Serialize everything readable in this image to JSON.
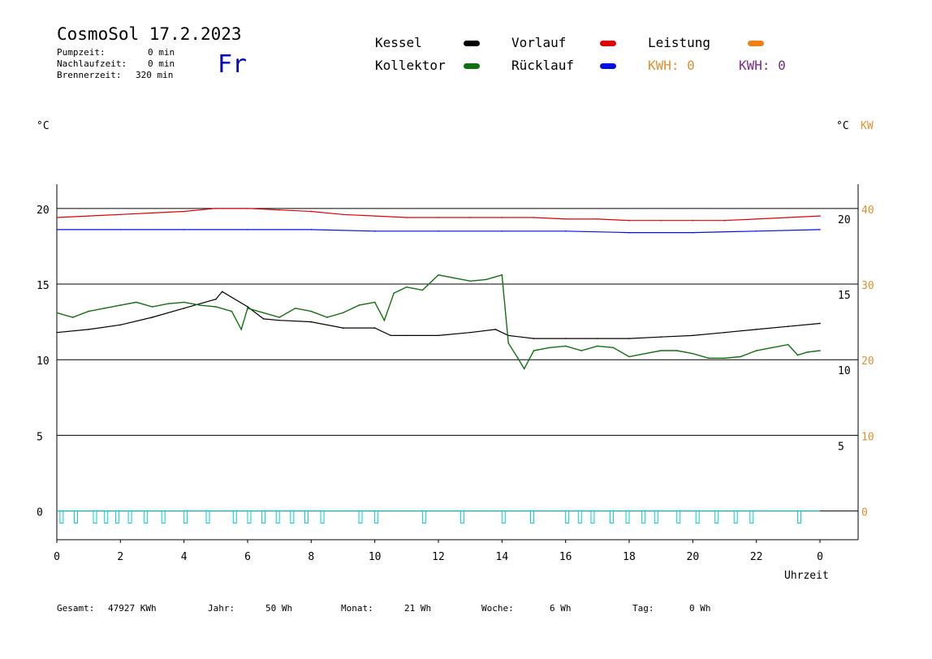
{
  "header": {
    "title": "CosmoSol 17.2.2023",
    "day": "Fr",
    "stats": [
      {
        "label": "Pumpzeit:",
        "value": "0 min"
      },
      {
        "label": "Nachlaufzeit:",
        "value": "0 min"
      },
      {
        "label": "Brennerzeit:",
        "value": "320 min"
      }
    ]
  },
  "legend": {
    "kessel": {
      "label": "Kessel",
      "color": "#000000"
    },
    "vorlauf": {
      "label": "Vorlauf",
      "color": "#e00000"
    },
    "leistung": {
      "label": "Leistung",
      "color": "#f08010"
    },
    "kollektor": {
      "label": "Kollektor",
      "color": "#107010"
    },
    "ruecklauf": {
      "label": "Rücklauf",
      "color": "#0010e0"
    },
    "kwh1": {
      "label": "KWH: 0",
      "color": "#e09030"
    },
    "kwh2": {
      "label": "KWH: 0",
      "color": "#7a2a8a"
    }
  },
  "axes": {
    "left_unit": "°C",
    "right_unit": "°C",
    "right_unit2": "KW",
    "x_label": "Uhrzeit"
  },
  "footer": [
    {
      "label": "Gesamt:",
      "value": "47927 KWh"
    },
    {
      "label": "Jahr:",
      "value": "50 Wh"
    },
    {
      "label": "Monat:",
      "value": "21 Wh"
    },
    {
      "label": "Woche:",
      "value": "6 Wh"
    },
    {
      "label": "Tag:",
      "value": "0 Wh"
    }
  ],
  "chart_data": {
    "type": "line",
    "x_ticks": [
      "0",
      "2",
      "4",
      "6",
      "8",
      "10",
      "12",
      "14",
      "16",
      "18",
      "20",
      "22",
      "0"
    ],
    "x_range": [
      0,
      24
    ],
    "left_axis": {
      "ticks": [
        "20",
        "15",
        "10",
        "5",
        "0"
      ],
      "range": [
        -1.5,
        22
      ]
    },
    "right_axis_temp": {
      "ticks": [
        "20",
        "15",
        "10",
        "5"
      ]
    },
    "right_axis_kw": {
      "ticks": [
        "40",
        "30",
        "20",
        "10",
        "0"
      ]
    },
    "grid_lines_y": [
      20.4,
      15.4,
      10.4,
      5.4,
      0.4
    ],
    "series": [
      {
        "name": "Vorlauf",
        "color": "#e00000",
        "x": [
          0,
          1,
          2,
          3,
          4,
          5,
          6,
          7,
          8,
          9,
          10,
          11,
          12,
          13,
          14,
          15,
          16,
          17,
          18,
          19,
          20,
          21,
          22,
          23,
          24
        ],
        "y": [
          19.8,
          19.9,
          20.0,
          20.1,
          20.2,
          20.4,
          20.4,
          20.3,
          20.2,
          20.0,
          19.9,
          19.8,
          19.8,
          19.8,
          19.8,
          19.8,
          19.7,
          19.7,
          19.6,
          19.6,
          19.6,
          19.6,
          19.7,
          19.8,
          19.9
        ]
      },
      {
        "name": "Rücklauf",
        "color": "#0010e0",
        "x": [
          0,
          2,
          4,
          6,
          8,
          10,
          12,
          14,
          16,
          18,
          20,
          22,
          24
        ],
        "y": [
          19.0,
          19.0,
          19.0,
          19.0,
          19.0,
          18.9,
          18.9,
          18.9,
          18.9,
          18.8,
          18.8,
          18.9,
          19.0
        ]
      },
      {
        "name": "Kessel",
        "color": "#000000",
        "x": [
          0,
          1,
          2,
          3,
          4,
          5,
          5.2,
          6,
          6.5,
          7,
          8,
          9,
          10,
          10.5,
          11,
          12,
          13,
          13.8,
          14.2,
          15,
          16,
          17,
          18,
          19,
          20,
          21,
          22,
          23,
          24
        ],
        "y": [
          12.2,
          12.4,
          12.7,
          13.2,
          13.8,
          14.4,
          14.9,
          13.9,
          13.1,
          13.0,
          12.9,
          12.5,
          12.5,
          12.0,
          12.0,
          12.0,
          12.2,
          12.4,
          12.0,
          11.8,
          11.8,
          11.8,
          11.8,
          11.9,
          12.0,
          12.2,
          12.4,
          12.6,
          12.8
        ]
      },
      {
        "name": "Kollektor",
        "color": "#107010",
        "x": [
          0,
          0.5,
          1,
          1.5,
          2,
          2.5,
          3,
          3.5,
          4,
          4.5,
          5,
          5.5,
          5.8,
          6,
          6.5,
          7,
          7.5,
          8,
          8.5,
          9,
          9.5,
          10,
          10.3,
          10.6,
          11,
          11.5,
          12,
          12.5,
          13,
          13.5,
          14,
          14.2,
          14.5,
          14.7,
          15,
          15.5,
          16,
          16.5,
          17,
          17.5,
          18,
          18.5,
          19,
          19.5,
          20,
          20.5,
          21,
          21.5,
          22,
          22.5,
          23,
          23.3,
          23.6,
          24
        ],
        "y": [
          13.5,
          13.2,
          13.6,
          13.8,
          14.0,
          14.2,
          13.9,
          14.1,
          14.2,
          14.0,
          13.9,
          13.6,
          12.4,
          13.8,
          13.5,
          13.2,
          13.8,
          13.6,
          13.2,
          13.5,
          14.0,
          14.2,
          13.0,
          14.8,
          15.2,
          15.0,
          16.0,
          15.8,
          15.6,
          15.7,
          16.0,
          11.5,
          10.5,
          9.8,
          11.0,
          11.2,
          11.3,
          11.0,
          11.3,
          11.2,
          10.6,
          10.8,
          11.0,
          11.0,
          10.8,
          10.5,
          10.5,
          10.6,
          11.0,
          11.2,
          11.4,
          10.7,
          10.9,
          11.0
        ]
      },
      {
        "name": "Leistung",
        "color": "#00d0d0",
        "x": [
          0.15,
          0.6,
          1.2,
          1.55,
          1.9,
          2.3,
          2.8,
          3.35,
          4.05,
          4.75,
          5.6,
          6.05,
          6.5,
          6.95,
          7.4,
          7.85,
          8.35,
          9.55,
          10.05,
          11.55,
          12.75,
          14.05,
          14.95,
          16.05,
          16.45,
          16.85,
          17.45,
          17.95,
          18.45,
          18.85,
          19.55,
          20.15,
          20.75,
          21.35,
          21.85,
          23.35
        ],
        "y": [
          0,
          0,
          0,
          0,
          0,
          0,
          0,
          0,
          0,
          0,
          0,
          0,
          0,
          0,
          0,
          0,
          0,
          0,
          0,
          0,
          0,
          0,
          0,
          0,
          0,
          0,
          0,
          0,
          0,
          0,
          0,
          0,
          0,
          0,
          0,
          0
        ]
      }
    ]
  }
}
